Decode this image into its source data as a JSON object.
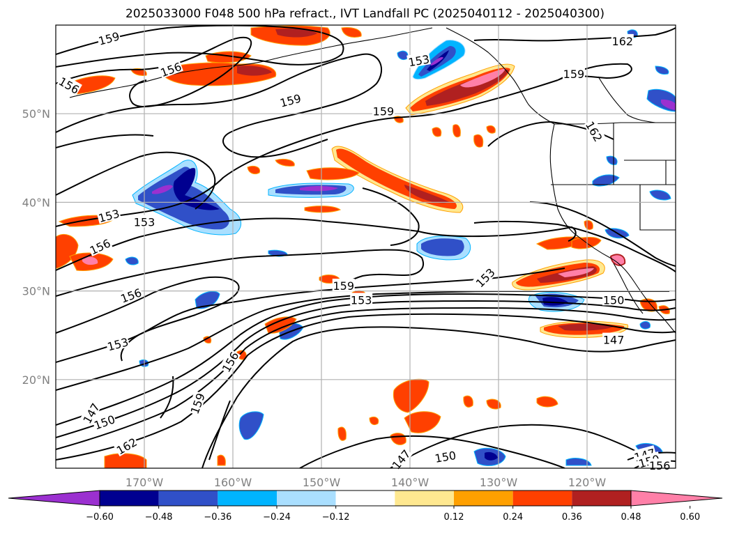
{
  "title": "2025033000 F048 500 hPa refract., IVT Landfall PC (2025040112 - 2025040300)",
  "map": {
    "lon_range": [
      -180,
      -110
    ],
    "lat_range": [
      10,
      60
    ],
    "lon_ticks": [
      {
        "value": -170,
        "label": "170°W"
      },
      {
        "value": -160,
        "label": "160°W"
      },
      {
        "value": -150,
        "label": "150°W"
      },
      {
        "value": -140,
        "label": "140°W"
      },
      {
        "value": -130,
        "label": "130°W"
      },
      {
        "value": -120,
        "label": "120°W"
      }
    ],
    "lat_ticks": [
      {
        "value": 20,
        "label": "20°N"
      },
      {
        "value": 30,
        "label": "30°N"
      },
      {
        "value": 40,
        "label": "40°N"
      },
      {
        "value": 50,
        "label": "50°N"
      }
    ],
    "grid": true
  },
  "contour_labels": [
    {
      "text": "159",
      "lon": -174,
      "lat": 58.5,
      "rot": -15
    },
    {
      "text": "156",
      "lon": -167.0,
      "lat": 55.0,
      "rot": -20
    },
    {
      "text": "156",
      "lon": -178.5,
      "lat": 53.2,
      "rot": 30
    },
    {
      "text": "159",
      "lon": -153.5,
      "lat": 51.5,
      "rot": -15
    },
    {
      "text": "159",
      "lon": -143,
      "lat": 50.3,
      "rot": 0
    },
    {
      "text": "159",
      "lon": -121.5,
      "lat": 54.5,
      "rot": 0
    },
    {
      "text": "162",
      "lon": -116.0,
      "lat": 58.2,
      "rot": 0
    },
    {
      "text": "162",
      "lon": -119.2,
      "lat": 48.0,
      "rot": 60
    },
    {
      "text": "153",
      "lon": -174.0,
      "lat": 38.5,
      "rot": -15
    },
    {
      "text": "153",
      "lon": -170.0,
      "lat": 37.8,
      "rot": 0
    },
    {
      "text": "156",
      "lon": -175,
      "lat": 35.0,
      "rot": -25
    },
    {
      "text": "156",
      "lon": -171.5,
      "lat": 29.5,
      "rot": -20
    },
    {
      "text": "153",
      "lon": -173.0,
      "lat": 24.0,
      "rot": -15
    },
    {
      "text": "159",
      "lon": -147.5,
      "lat": 30.6,
      "rot": 0
    },
    {
      "text": "153",
      "lon": -145.5,
      "lat": 29.0,
      "rot": 0
    },
    {
      "text": "153",
      "lon": -131.5,
      "lat": 31.5,
      "rot": -45
    },
    {
      "text": "150",
      "lon": -117.0,
      "lat": 29.0,
      "rot": 0
    },
    {
      "text": "147",
      "lon": -117.0,
      "lat": 24.5,
      "rot": 0
    },
    {
      "text": "156",
      "lon": -160.3,
      "lat": 22.0,
      "rot": -60
    },
    {
      "text": "159",
      "lon": -164.0,
      "lat": 17.3,
      "rot": -70
    },
    {
      "text": "147",
      "lon": -176.0,
      "lat": 16.2,
      "rot": -60
    },
    {
      "text": "150",
      "lon": -174.5,
      "lat": 15.2,
      "rot": -20
    },
    {
      "text": "162",
      "lon": -172.0,
      "lat": 12.5,
      "rot": -30
    },
    {
      "text": "147",
      "lon": -141.0,
      "lat": 11.0,
      "rot": -50
    },
    {
      "text": "150",
      "lon": -136.0,
      "lat": 11.3,
      "rot": -10
    },
    {
      "text": "147",
      "lon": -113.5,
      "lat": 11.5,
      "rot": -15
    },
    {
      "text": "150",
      "lon": -113.0,
      "lat": 10.8,
      "rot": -15
    },
    {
      "text": "156",
      "lon": -111.8,
      "lat": 10.3,
      "rot": 0
    },
    {
      "text": "153",
      "lon": -139,
      "lat": 56.0,
      "rot": -10
    }
  ],
  "colorbar": {
    "ticks": [
      "−0.60",
      "−0.48",
      "−0.36",
      "−0.24",
      "−0.12",
      "0.12",
      "0.24",
      "0.36",
      "0.48",
      "0.60"
    ],
    "colors": [
      "#9b30d0",
      "#000090",
      "#3050c8",
      "#00b4ff",
      "#aadfff",
      "#ffffff",
      "#ffe890",
      "#ffa000",
      "#ff4000",
      "#b02020",
      "#ff80a8"
    ]
  },
  "contour_units_hint": "",
  "fills": {
    "pos_colors": [
      "#ffe890",
      "#ffa000",
      "#ff4000",
      "#b02020",
      "#ff80a8"
    ],
    "neg_colors": [
      "#aadfff",
      "#00b4ff",
      "#3050c8",
      "#000090",
      "#9b30d0"
    ]
  }
}
